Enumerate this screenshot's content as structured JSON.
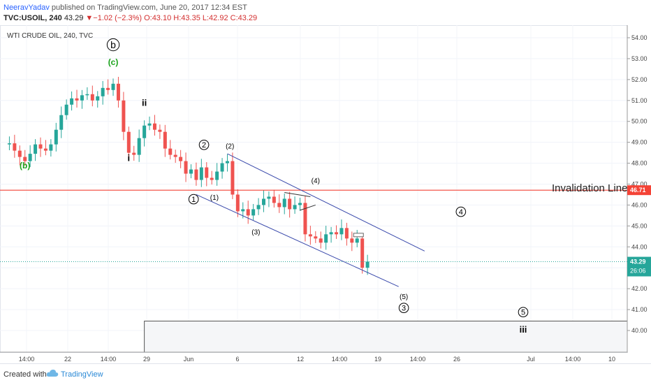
{
  "header": {
    "author": "NeeravYadav",
    "published": "published on TradingView.com, June 20, 2017 12:34 EST",
    "symbol": "TVC:USOIL, 240",
    "last": "43.29",
    "change_arrow": "▼",
    "change": "−1.02 (−2.3%)",
    "ohlc": [
      "O:43.10",
      "H:43.35",
      "L:42.92",
      "C:43.29"
    ]
  },
  "chart_data": {
    "type": "candlestick",
    "title": "WTI CRUDE OIL, 240, TVC",
    "ylim": [
      39.0,
      54.5
    ],
    "y_ticks": [
      "54.00",
      "53.00",
      "52.00",
      "51.00",
      "50.00",
      "49.00",
      "48.00",
      "47.00",
      "46.00",
      "45.00",
      "44.00",
      "43.00",
      "42.00",
      "41.00",
      "40.00"
    ],
    "x_ticks": [
      "14:00",
      "22",
      "14:00",
      "29",
      "Jun",
      "6",
      "12",
      "14:00",
      "19",
      "14:00",
      "26",
      "Jul",
      "14:00",
      "10"
    ],
    "last_price": {
      "value": 43.29,
      "label": "43.29",
      "countdown": "26:06",
      "color": "#26a69a"
    },
    "invalidation": {
      "value": 46.71,
      "label": "46.71",
      "text": "Invalidation Line",
      "color": "#f44336"
    },
    "candle_colors": {
      "up": "#26a69a",
      "down": "#ef5350"
    },
    "price_path": [
      [
        0,
        48.9
      ],
      [
        1,
        48.95
      ],
      [
        2,
        48.6
      ],
      [
        3,
        48.3
      ],
      [
        4,
        48.1
      ],
      [
        5,
        48.45
      ],
      [
        6,
        48.9
      ],
      [
        7,
        48.7
      ],
      [
        8,
        48.6
      ],
      [
        9,
        48.9
      ],
      [
        10,
        49.6
      ],
      [
        11,
        50.3
      ],
      [
        12,
        50.8
      ],
      [
        13,
        51.1
      ],
      [
        14,
        51.0
      ],
      [
        15,
        51.25
      ],
      [
        16,
        51.3
      ],
      [
        17,
        51.0
      ],
      [
        18,
        51.2
      ],
      [
        19,
        51.6
      ],
      [
        20,
        51.5
      ],
      [
        21,
        51.8
      ],
      [
        22,
        51.0
      ],
      [
        23,
        49.5
      ],
      [
        24,
        48.5
      ],
      [
        25,
        48.4
      ],
      [
        26,
        49.2
      ],
      [
        27,
        49.8
      ],
      [
        28,
        49.9
      ],
      [
        29,
        49.6
      ],
      [
        30,
        49.5
      ],
      [
        31,
        48.7
      ],
      [
        32,
        48.4
      ],
      [
        33,
        48.3
      ],
      [
        34,
        48.1
      ],
      [
        35,
        47.5
      ],
      [
        36,
        47.7
      ],
      [
        37,
        47.2
      ],
      [
        38,
        47.8
      ],
      [
        39,
        47.3
      ],
      [
        40,
        47.2
      ],
      [
        41,
        47.6
      ],
      [
        42,
        48.0
      ],
      [
        43,
        48.1
      ],
      [
        44,
        46.5
      ],
      [
        45,
        45.7
      ],
      [
        46,
        45.8
      ],
      [
        47,
        45.5
      ],
      [
        48,
        45.8
      ],
      [
        49,
        46.0
      ],
      [
        50,
        46.3
      ],
      [
        51,
        46.4
      ],
      [
        52,
        46.1
      ],
      [
        53,
        45.9
      ],
      [
        54,
        46.3
      ],
      [
        55,
        45.8
      ],
      [
        56,
        46.0
      ],
      [
        57,
        46.1
      ],
      [
        58,
        44.6
      ],
      [
        59,
        44.5
      ],
      [
        60,
        44.4
      ],
      [
        61,
        44.2
      ],
      [
        62,
        44.6
      ],
      [
        63,
        44.7
      ],
      [
        64,
        44.6
      ],
      [
        65,
        44.9
      ],
      [
        66,
        44.4
      ],
      [
        67,
        44.2
      ],
      [
        68,
        44.4
      ],
      [
        69,
        43.0
      ],
      [
        70,
        43.29
      ]
    ],
    "x_max": 120,
    "channel_lines": [
      {
        "name": "upper-channel",
        "from": [
          43,
          48.45
        ],
        "to": [
          81,
          43.8
        ]
      },
      {
        "name": "lower-channel",
        "from": [
          37,
          46.5
        ],
        "to": [
          76,
          42.1
        ]
      }
    ],
    "triangle": [
      [
        54,
        46.6
      ],
      [
        59,
        46.4
      ],
      [
        57,
        45.75
      ],
      [
        60,
        46.0
      ]
    ],
    "box": {
      "from_x": 27,
      "top": 40.45,
      "bottom": 39.0
    },
    "wave_labels": [
      {
        "text": "b",
        "x": 21,
        "y": 53.5,
        "circled": true,
        "color": "#000000",
        "size": 14
      },
      {
        "text": "(c)",
        "x": 21,
        "y": 52.7,
        "circled": false,
        "color": "#1aa31a",
        "size": 12,
        "bold": true
      },
      {
        "text": "(b)",
        "x": 4,
        "y": 47.75,
        "circled": false,
        "color": "#1aa31a",
        "size": 12,
        "bold": true
      },
      {
        "text": "ii",
        "x": 27,
        "y": 50.75,
        "circled": false,
        "color": "#000000",
        "size": 13,
        "bold": true
      },
      {
        "text": "i",
        "x": 24,
        "y": 48.1,
        "circled": false,
        "color": "#000000",
        "size": 13,
        "bold": true
      },
      {
        "text": "2",
        "x": 38.5,
        "y": 48.75,
        "circled": true,
        "color": "#000000",
        "size": 11
      },
      {
        "text": "(2)",
        "x": 43.5,
        "y": 48.7,
        "circled": false,
        "color": "#000000",
        "size": 10
      },
      {
        "text": "1",
        "x": 36.5,
        "y": 46.15,
        "circled": true,
        "color": "#000000",
        "size": 11
      },
      {
        "text": "(1)",
        "x": 40.5,
        "y": 46.25,
        "circled": false,
        "color": "#000000",
        "size": 10
      },
      {
        "text": "(4)",
        "x": 60,
        "y": 47.05,
        "circled": false,
        "color": "#000000",
        "size": 10
      },
      {
        "text": "(3)",
        "x": 48.5,
        "y": 44.6,
        "circled": false,
        "color": "#000000",
        "size": 10
      },
      {
        "text": "4",
        "x": 88,
        "y": 45.55,
        "circled": true,
        "color": "#000000",
        "size": 11
      },
      {
        "text": "(5)",
        "x": 77,
        "y": 41.5,
        "circled": false,
        "color": "#000000",
        "size": 10
      },
      {
        "text": "3",
        "x": 77,
        "y": 40.95,
        "circled": true,
        "color": "#000000",
        "size": 11
      },
      {
        "text": "5",
        "x": 100,
        "y": 40.75,
        "circled": true,
        "color": "#000000",
        "size": 11
      },
      {
        "text": "iii",
        "x": 100,
        "y": 39.9,
        "circled": false,
        "color": "#000000",
        "size": 13,
        "bold": true
      }
    ]
  },
  "footer": {
    "created": "Created with",
    "brand": "TradingView"
  }
}
